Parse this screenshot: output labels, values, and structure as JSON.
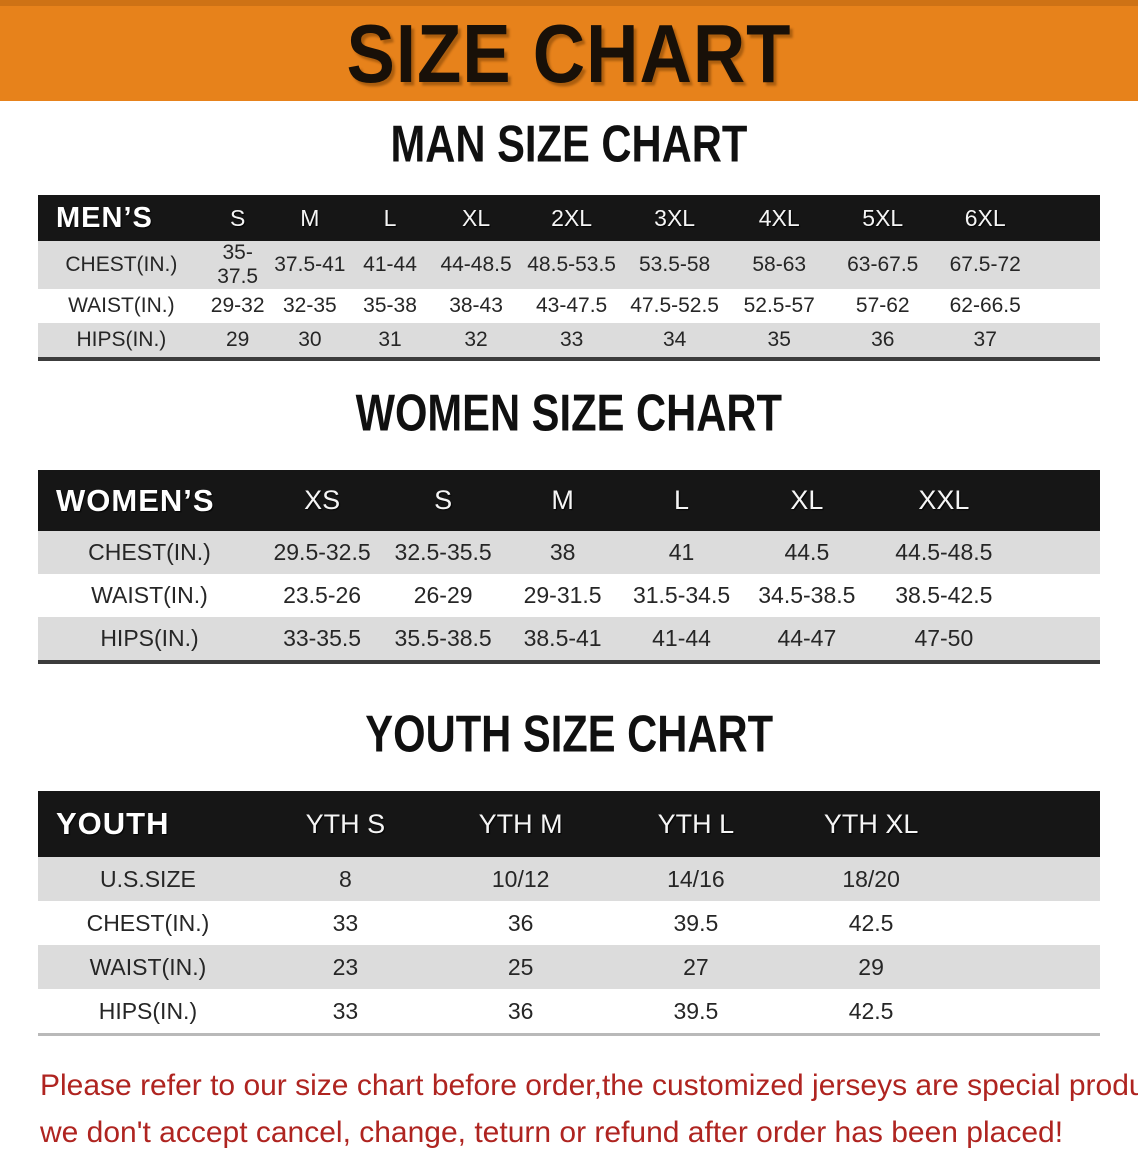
{
  "banner": {
    "title": "SIZE CHART"
  },
  "colors": {
    "banner_bg": "#E7821B",
    "header_bg": "#161616",
    "row_alt": "#DCDCDC",
    "footer_text": "#AF2420"
  },
  "sections": [
    {
      "heading": "MAN SIZE CHART",
      "table": {
        "header": [
          "MEN’S",
          "S",
          "M",
          "L",
          "XL",
          "2XL",
          "3XL",
          "4XL",
          "5XL",
          "6XL"
        ],
        "rows": [
          [
            "CHEST(IN.)",
            "35-37.5",
            "37.5-41",
            "41-44",
            "44-48.5",
            "48.5-53.5",
            "53.5-58",
            "58-63",
            "63-67.5",
            "67.5-72"
          ],
          [
            "WAIST(IN.)",
            "29-32",
            "32-35",
            "35-38",
            "38-43",
            "43-47.5",
            "47.5-52.5",
            "52.5-57",
            "57-62",
            "62-66.5"
          ],
          [
            "HIPS(IN.)",
            "29",
            "30",
            "31",
            "32",
            "33",
            "34",
            "35",
            "36",
            "37"
          ]
        ]
      }
    },
    {
      "heading": "WOMEN SIZE CHART",
      "table": {
        "header": [
          "WOMEN’S",
          "XS",
          "S",
          "M",
          "L",
          "XL",
          "XXL"
        ],
        "rows": [
          [
            "CHEST(IN.)",
            "29.5-32.5",
            "32.5-35.5",
            "38",
            "41",
            "44.5",
            "44.5-48.5"
          ],
          [
            "WAIST(IN.)",
            "23.5-26",
            "26-29",
            "29-31.5",
            "31.5-34.5",
            "34.5-38.5",
            "38.5-42.5"
          ],
          [
            "HIPS(IN.)",
            "33-35.5",
            "35.5-38.5",
            "38.5-41",
            "41-44",
            "44-47",
            "47-50"
          ]
        ]
      }
    },
    {
      "heading": "YOUTH SIZE CHART",
      "table": {
        "header": [
          "YOUTH",
          "YTH S",
          "YTH M",
          "YTH L",
          "YTH XL"
        ],
        "rows": [
          [
            "U.S.SIZE",
            "8",
            "10/12",
            "14/16",
            "18/20"
          ],
          [
            "CHEST(IN.)",
            "33",
            "36",
            "39.5",
            "42.5"
          ],
          [
            "WAIST(IN.)",
            "23",
            "25",
            "27",
            "29"
          ],
          [
            "HIPS(IN.)",
            "33",
            "36",
            "39.5",
            "42.5"
          ]
        ]
      }
    }
  ],
  "footer": {
    "line1": "Please refer to our size chart before order,the customized jerseys are special products,",
    "line2": "we don't accept cancel, change, teturn or refund after order has been placed!"
  },
  "chart_data": [
    {
      "type": "table",
      "title": "MAN SIZE CHART",
      "columns": [
        "MEN’S",
        "S",
        "M",
        "L",
        "XL",
        "2XL",
        "3XL",
        "4XL",
        "5XL",
        "6XL"
      ],
      "rows": [
        [
          "CHEST(IN.)",
          "35-37.5",
          "37.5-41",
          "41-44",
          "44-48.5",
          "48.5-53.5",
          "53.5-58",
          "58-63",
          "63-67.5",
          "67.5-72"
        ],
        [
          "WAIST(IN.)",
          "29-32",
          "32-35",
          "35-38",
          "38-43",
          "43-47.5",
          "47.5-52.5",
          "52.5-57",
          "57-62",
          "62-66.5"
        ],
        [
          "HIPS(IN.)",
          "29",
          "30",
          "31",
          "32",
          "33",
          "34",
          "35",
          "36",
          "37"
        ]
      ]
    },
    {
      "type": "table",
      "title": "WOMEN SIZE CHART",
      "columns": [
        "WOMEN’S",
        "XS",
        "S",
        "M",
        "L",
        "XL",
        "XXL"
      ],
      "rows": [
        [
          "CHEST(IN.)",
          "29.5-32.5",
          "32.5-35.5",
          "38",
          "41",
          "44.5",
          "44.5-48.5"
        ],
        [
          "WAIST(IN.)",
          "23.5-26",
          "26-29",
          "29-31.5",
          "31.5-34.5",
          "34.5-38.5",
          "38.5-42.5"
        ],
        [
          "HIPS(IN.)",
          "33-35.5",
          "35.5-38.5",
          "38.5-41",
          "41-44",
          "44-47",
          "47-50"
        ]
      ]
    },
    {
      "type": "table",
      "title": "YOUTH SIZE CHART",
      "columns": [
        "YOUTH",
        "YTH S",
        "YTH M",
        "YTH L",
        "YTH XL"
      ],
      "rows": [
        [
          "U.S.SIZE",
          "8",
          "10/12",
          "14/16",
          "18/20"
        ],
        [
          "CHEST(IN.)",
          "33",
          "36",
          "39.5",
          "42.5"
        ],
        [
          "WAIST(IN.)",
          "23",
          "25",
          "27",
          "29"
        ],
        [
          "HIPS(IN.)",
          "33",
          "36",
          "39.5",
          "42.5"
        ]
      ]
    }
  ]
}
